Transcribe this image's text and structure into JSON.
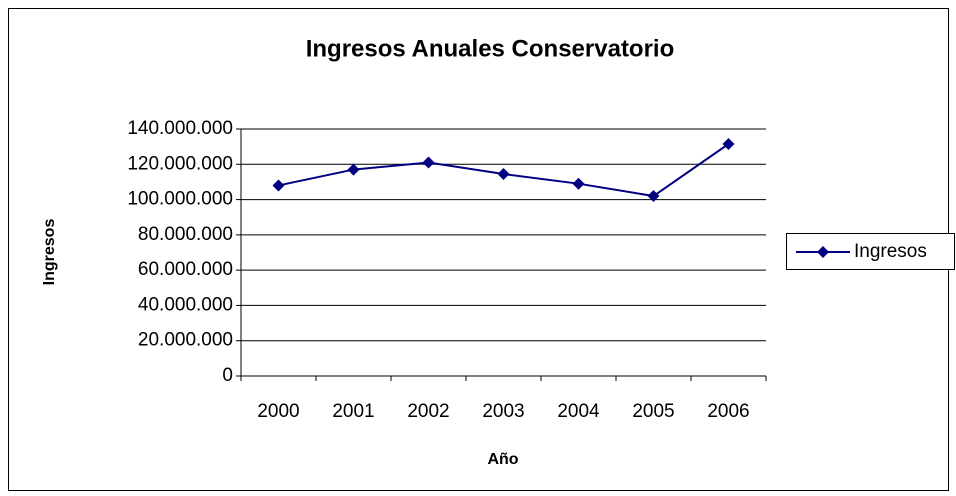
{
  "chart_data": {
    "type": "line",
    "title": "Ingresos Anuales Conservatorio",
    "x_label": "Año",
    "y_label": "Ingresos",
    "categories": [
      "2000",
      "2001",
      "2002",
      "2003",
      "2004",
      "2005",
      "2006"
    ],
    "series": [
      {
        "name": "Ingresos",
        "color": "#000080",
        "values": [
          108000000,
          117000000,
          121000000,
          114500000,
          109000000,
          102000000,
          131500000
        ]
      }
    ],
    "ylim": [
      0,
      140000000
    ],
    "yticks": [
      0,
      {
        "value": 20000000,
        "label": "20.000.000"
      },
      {
        "value": 40000000,
        "label": "40.000.000"
      },
      {
        "value": 60000000,
        "label": "60.000.000"
      },
      {
        "value": 80000000,
        "label": "80.000.000"
      },
      {
        "value": 100000000,
        "label": "100.000.000"
      },
      {
        "value": 120000000,
        "label": "120.000.000"
      },
      {
        "value": 140000000,
        "label": "140.000.000"
      }
    ],
    "grid": true,
    "legend": "right"
  }
}
